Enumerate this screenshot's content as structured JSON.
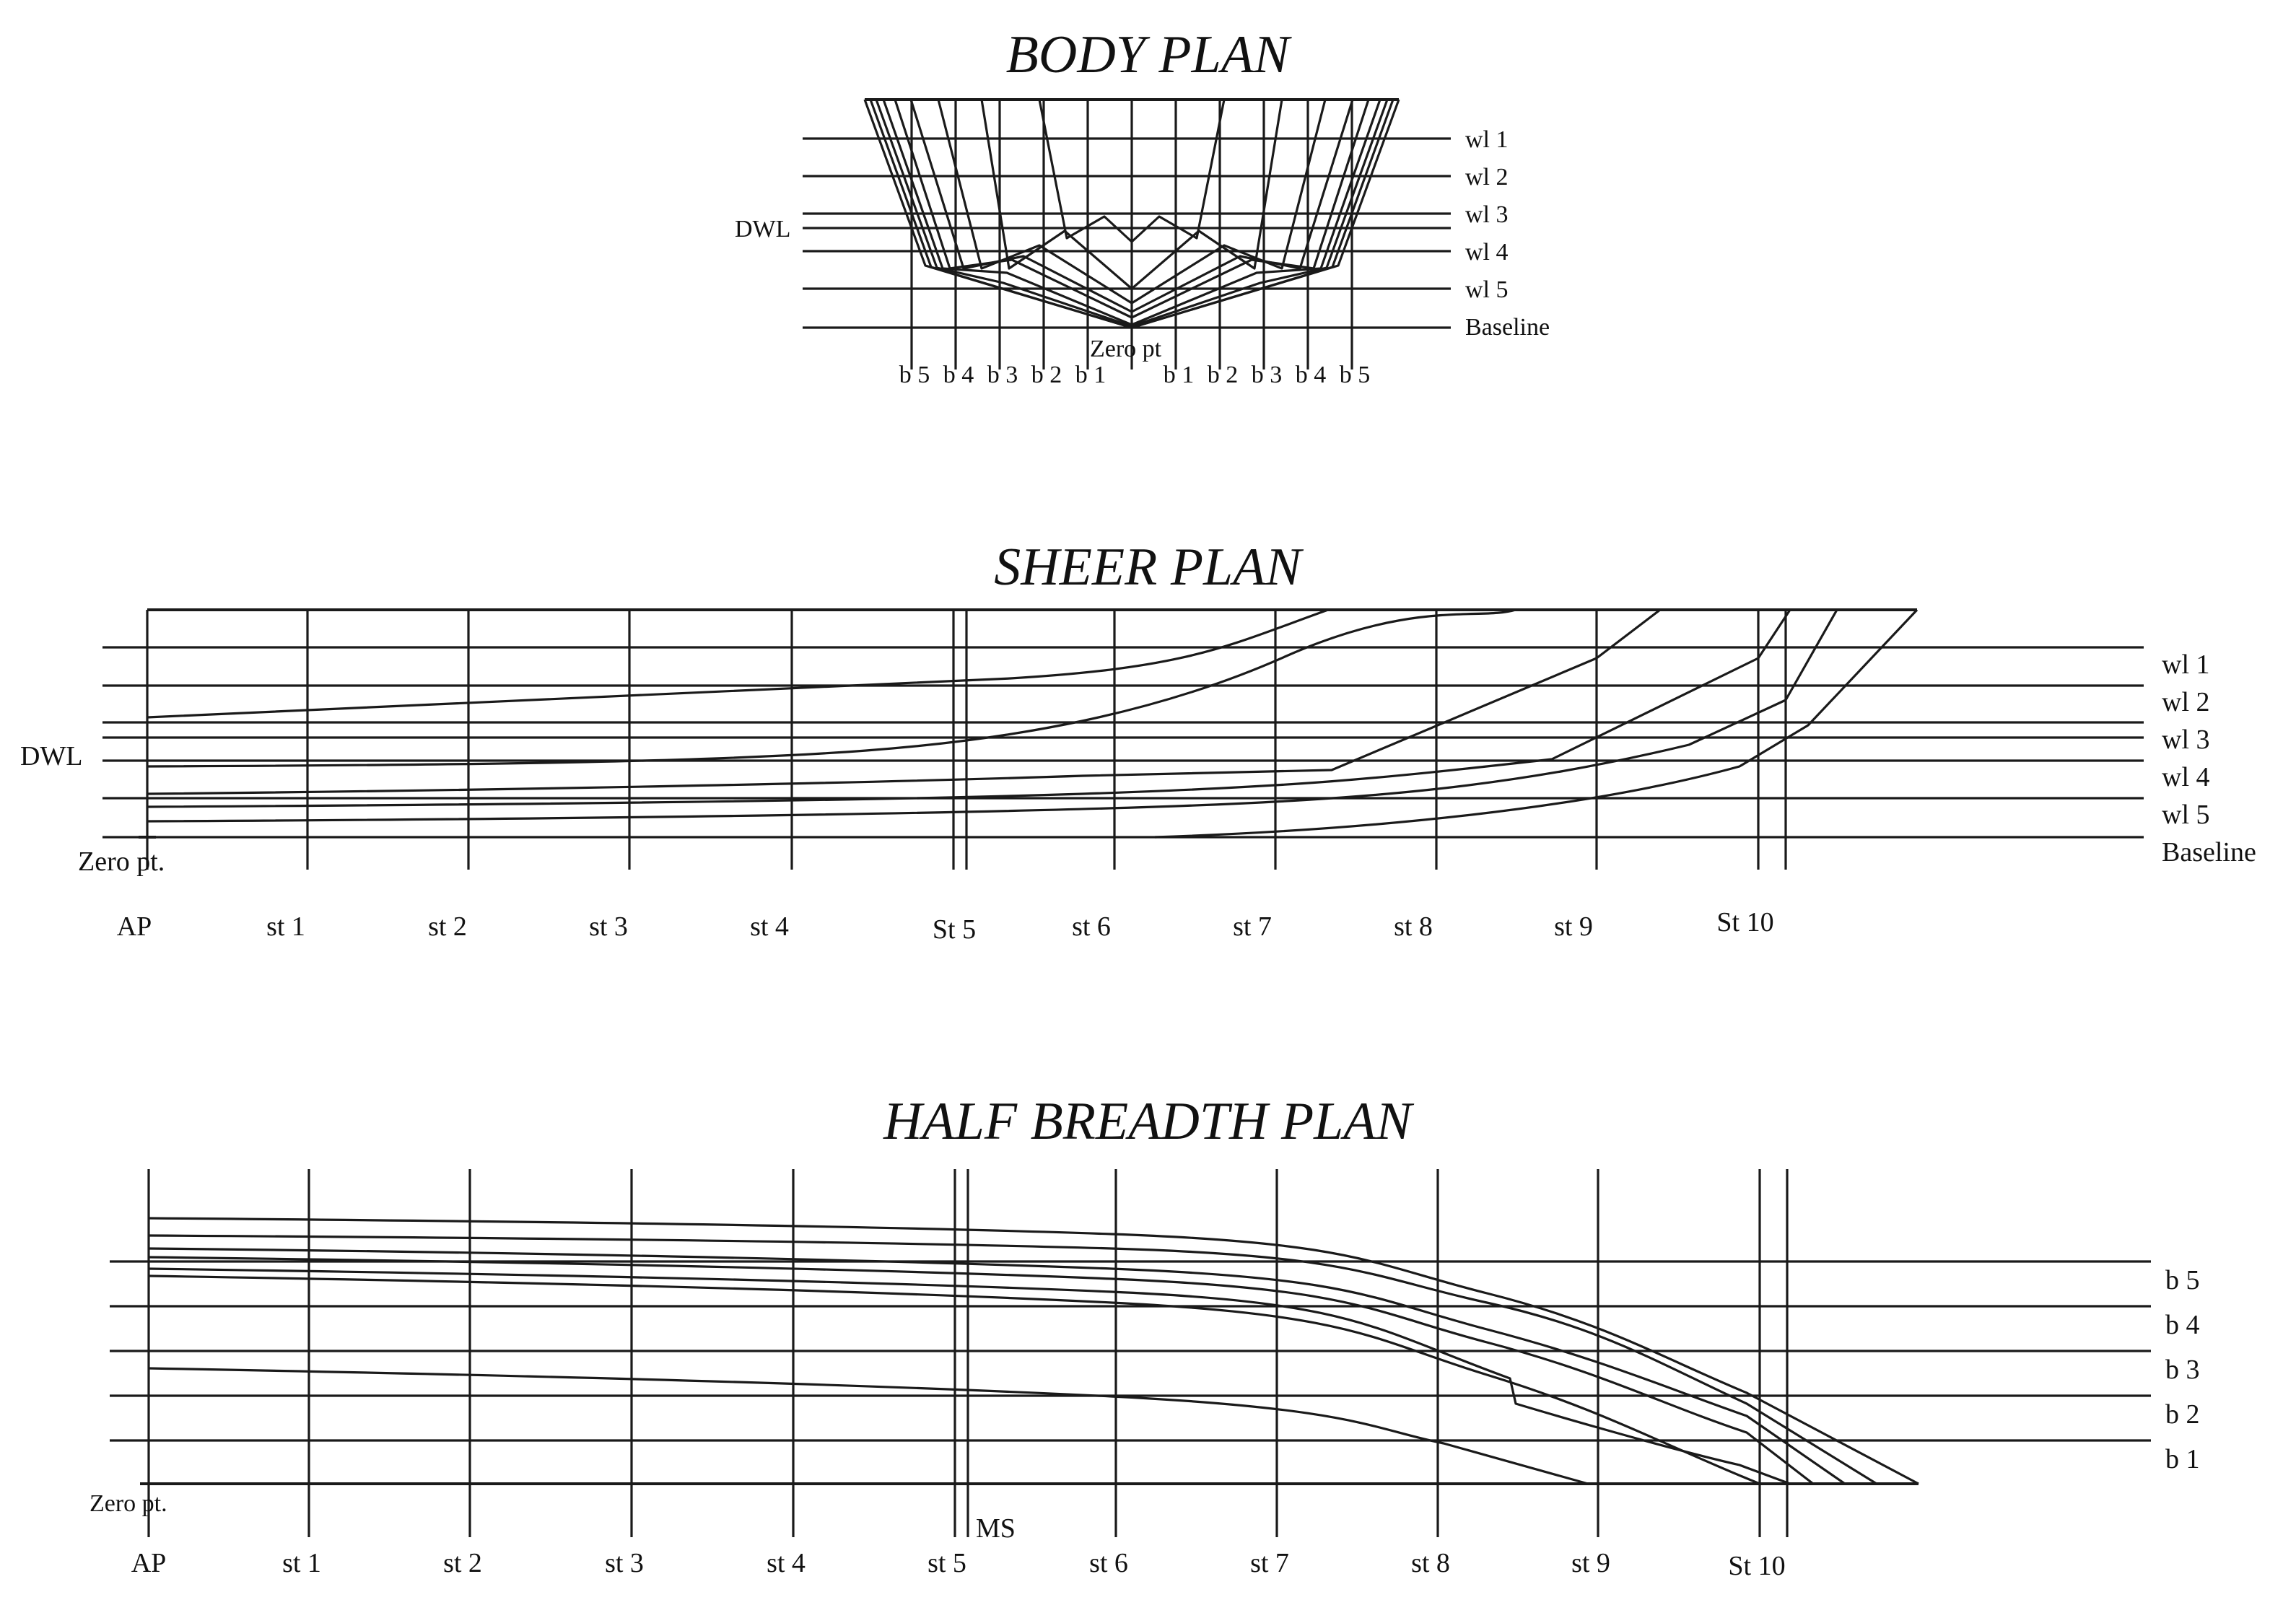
{
  "body_plan": {
    "title": "BODY PLAN",
    "dwl_label": "DWL",
    "zero_label": "Zero pt",
    "waterlines": [
      "wl 1",
      "wl 2",
      "wl 3",
      "wl 4",
      "wl 5",
      "Baseline"
    ],
    "buttocks": [
      "b 5",
      "b 4",
      "b 3",
      "b 2",
      "b 1",
      "b 1",
      "b 2",
      "b 3",
      "b 4",
      "b 5"
    ]
  },
  "sheer_plan": {
    "title": "SHEER PLAN",
    "dwl_label": "DWL",
    "zero_label": "Zero pt.",
    "waterlines": [
      "wl 1",
      "wl 2",
      "wl 3",
      "wl 4",
      "wl 5",
      "Baseline"
    ],
    "stations": [
      "AP",
      "st 1",
      "st 2",
      "st 3",
      "st 4",
      "St 5",
      "st 6",
      "st 7",
      "st 8",
      "st 9",
      "St 10"
    ]
  },
  "half_breadth_plan": {
    "title": "HALF BREADTH PLAN",
    "zero_label": "Zero pt.",
    "ms_label": "MS",
    "buttocks": [
      "b 5",
      "b 4",
      "b 3",
      "b 2",
      "b 1"
    ],
    "stations": [
      "AP",
      "st 1",
      "st 2",
      "st 3",
      "st 4",
      "st 5",
      "st 6",
      "st 7",
      "st 8",
      "st 9",
      "St 10"
    ]
  }
}
